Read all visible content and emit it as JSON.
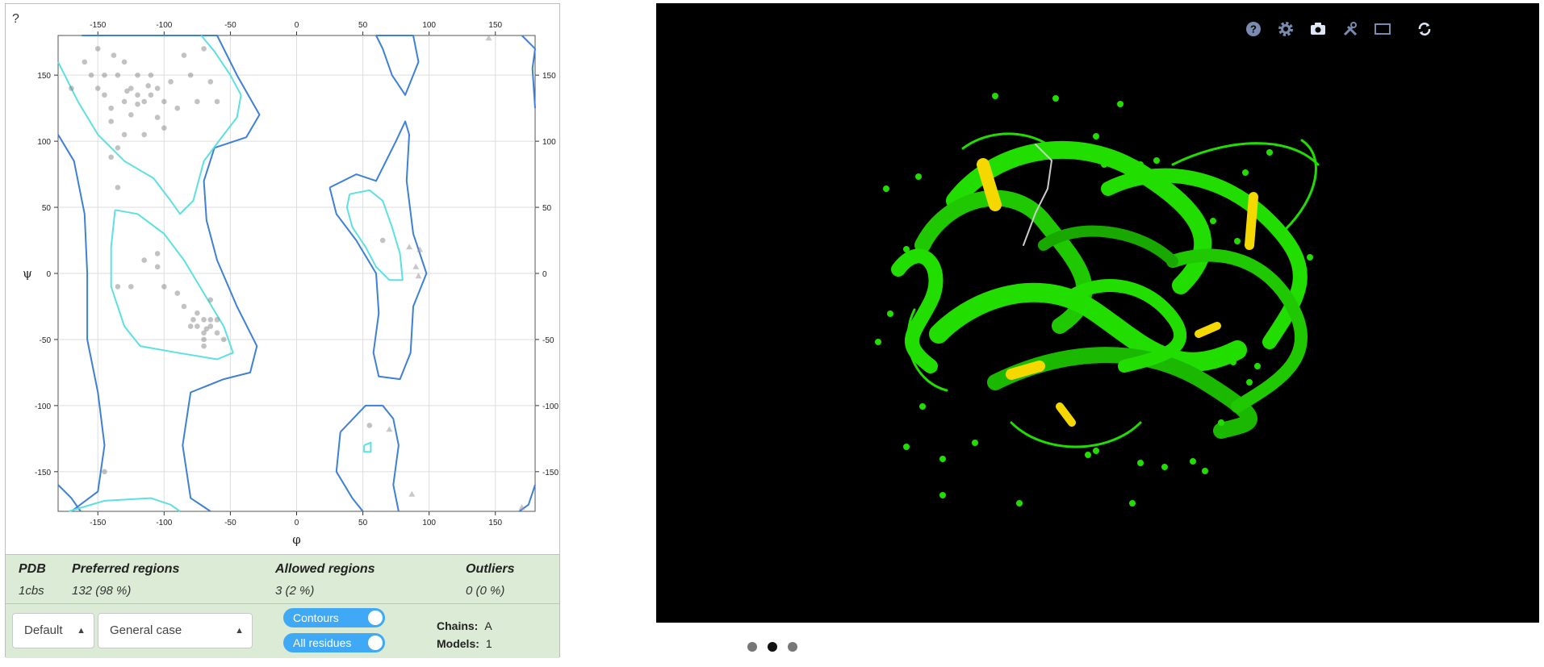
{
  "help_label": "?",
  "chart_data": {
    "type": "scatter",
    "title": "",
    "xlabel": "φ",
    "ylabel": "ψ",
    "xlim": [
      -180,
      180
    ],
    "ylim": [
      -180,
      180
    ],
    "xticks": [
      -150,
      -100,
      -50,
      0,
      50,
      100,
      150
    ],
    "yticks": [
      150,
      100,
      50,
      0,
      -50,
      -100,
      -150
    ],
    "grid": true,
    "series": [
      {
        "marker": "circle",
        "points": [
          [
            -160,
            160
          ],
          [
            -150,
            170
          ],
          [
            -138,
            165
          ],
          [
            -130,
            160
          ],
          [
            -135,
            150
          ],
          [
            -125,
            140
          ],
          [
            -120,
            135
          ],
          [
            -130,
            130
          ],
          [
            -115,
            130
          ],
          [
            -110,
            135
          ],
          [
            -105,
            140
          ],
          [
            -100,
            130
          ],
          [
            -125,
            120
          ],
          [
            -140,
            125
          ],
          [
            -150,
            140
          ],
          [
            -145,
            150
          ],
          [
            -120,
            150
          ],
          [
            -110,
            150
          ],
          [
            -95,
            145
          ],
          [
            -90,
            125
          ],
          [
            -100,
            110
          ],
          [
            -115,
            105
          ],
          [
            -130,
            105
          ],
          [
            -80,
            150
          ],
          [
            -75,
            130
          ],
          [
            -65,
            145
          ],
          [
            -60,
            130
          ],
          [
            -85,
            165
          ],
          [
            -70,
            170
          ],
          [
            -140,
            115
          ],
          [
            -155,
            150
          ],
          [
            -170,
            140
          ],
          [
            -120,
            128
          ],
          [
            -128,
            138
          ],
          [
            -112,
            142
          ],
          [
            -145,
            135
          ],
          [
            -105,
            118
          ],
          [
            -135,
            95
          ],
          [
            -140,
            88
          ],
          [
            -135,
            65
          ],
          [
            -145,
            -150
          ],
          [
            -115,
            10
          ],
          [
            -105,
            5
          ],
          [
            -100,
            -10
          ],
          [
            -90,
            -15
          ],
          [
            -85,
            -25
          ],
          [
            -75,
            -30
          ],
          [
            -70,
            -35
          ],
          [
            -65,
            -40
          ],
          [
            -60,
            -45
          ],
          [
            -70,
            -45
          ],
          [
            -75,
            -40
          ],
          [
            -65,
            -35
          ],
          [
            -80,
            -40
          ],
          [
            -70,
            -50
          ],
          [
            -55,
            -50
          ],
          [
            -60,
            -35
          ],
          [
            -135,
            -10
          ],
          [
            -125,
            -10
          ],
          [
            -105,
            15
          ],
          [
            -65,
            -20
          ],
          [
            -70,
            -55
          ],
          [
            -78,
            -35
          ],
          [
            -68,
            -42
          ],
          [
            65,
            25
          ],
          [
            55,
            -115
          ]
        ]
      },
      {
        "marker": "triangle",
        "points": [
          [
            145,
            178
          ],
          [
            85,
            20
          ],
          [
            93,
            18
          ],
          [
            90,
            5
          ],
          [
            92,
            -2
          ],
          [
            70,
            -118
          ],
          [
            87,
            -167
          ],
          [
            170,
            -177
          ]
        ]
      }
    ]
  },
  "summary": {
    "headers": {
      "pdb": "PDB",
      "preferred": "Preferred regions",
      "allowed": "Allowed regions",
      "outliers": "Outliers"
    },
    "values": {
      "pdb": "1cbs",
      "preferred": "132 (98 %)",
      "allowed": "3 (2 %)",
      "outliers": "0 (0 %)"
    }
  },
  "controls": {
    "select1": "Default",
    "select2": "General case",
    "toggle1": "Contours",
    "toggle2": "All residues",
    "chains_label": "Chains:",
    "chains_value": "A",
    "models_label": "Models:",
    "models_value": "1"
  },
  "viewer": {
    "background": "#000000",
    "ribbon_color": "#22dd00",
    "accent_color": "#f5d800",
    "tools": [
      "help-icon",
      "gear-icon",
      "camera-icon",
      "tools-icon",
      "fullscreen-icon",
      "spin-icon"
    ]
  },
  "carousel": {
    "active": 2
  }
}
